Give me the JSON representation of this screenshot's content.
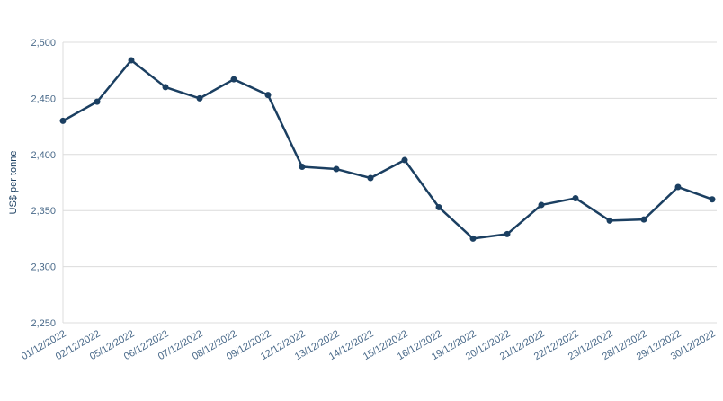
{
  "chart_data": {
    "type": "line",
    "y_label": "US$ per tonne",
    "categories": [
      "01/12/2022",
      "02/12/2022",
      "05/12/2022",
      "06/12/2022",
      "07/12/2022",
      "08/12/2022",
      "09/12/2022",
      "12/12/2022",
      "13/12/2022",
      "14/12/2022",
      "15/12/2022",
      "16/12/2022",
      "19/12/2022",
      "20/12/2022",
      "21/12/2022",
      "22/12/2022",
      "23/12/2022",
      "28/12/2022",
      "29/12/2022",
      "30/12/2022"
    ],
    "values": [
      2430,
      2447,
      2484,
      2460,
      2450,
      2467,
      2453,
      2389,
      2387,
      2379,
      2395,
      2353,
      2325,
      2329,
      2355,
      2361,
      2341,
      2342,
      2371,
      2360
    ],
    "color": "#1b3f61",
    "ylim": [
      2250,
      2500
    ],
    "yticks": [
      {
        "value": 2250,
        "label": "2,250"
      },
      {
        "value": 2300,
        "label": "2,300"
      },
      {
        "value": 2350,
        "label": "2,350"
      },
      {
        "value": 2400,
        "label": "2,400"
      },
      {
        "value": 2450,
        "label": "2,450"
      },
      {
        "value": 2500,
        "label": "2,500"
      }
    ],
    "grid": true
  }
}
